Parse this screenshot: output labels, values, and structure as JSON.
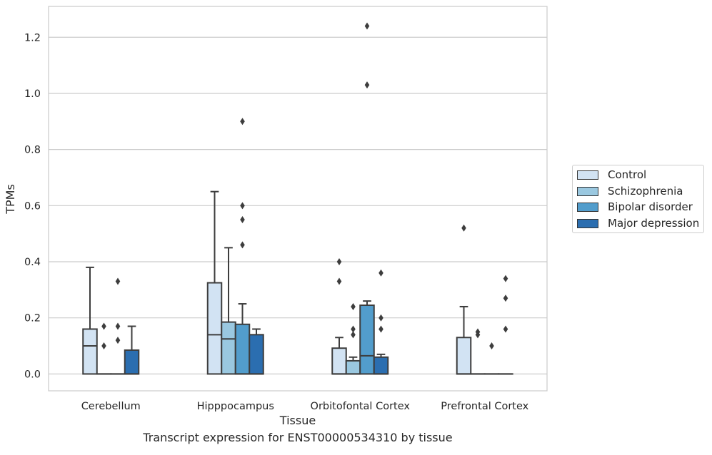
{
  "chart_data": {
    "type": "box",
    "xlabel": "Tissue",
    "ylabel": "TPMs",
    "caption": "Transcript expression for ENST00000534310 by tissue",
    "ylim": [
      -0.06,
      1.31
    ],
    "yticks": [
      "0.0",
      "0.2",
      "0.4",
      "0.6",
      "0.8",
      "1.0",
      "1.2"
    ],
    "grid": true,
    "legend_position": "right",
    "categories": [
      "Cerebellum",
      "Hipppocampus",
      "Orbitofontal Cortex",
      "Prefrontal Cortex"
    ],
    "series": [
      {
        "name": "Control",
        "color": "#d2e3f3"
      },
      {
        "name": "Schizophrenia",
        "color": "#9ac8e0"
      },
      {
        "name": "Bipolar disorder",
        "color": "#529dcc"
      },
      {
        "name": "Major depression",
        "color": "#2b6eb0"
      }
    ],
    "boxes": [
      [
        {
          "q1": 0.0,
          "median": 0.1,
          "q3": 0.16,
          "whislo": 0.0,
          "whishi": 0.38,
          "fliers": []
        },
        {
          "q1": 0.0,
          "median": 0.0,
          "q3": 0.0,
          "whislo": 0.0,
          "whishi": 0.0,
          "fliers": [
            0.1,
            0.17
          ]
        },
        {
          "q1": 0.0,
          "median": 0.0,
          "q3": 0.0,
          "whislo": 0.0,
          "whishi": 0.0,
          "fliers": [
            0.12,
            0.17,
            0.33
          ]
        },
        {
          "q1": 0.0,
          "median": 0.0,
          "q3": 0.085,
          "whislo": 0.0,
          "whishi": 0.17,
          "fliers": []
        }
      ],
      [
        {
          "q1": 0.0,
          "median": 0.14,
          "q3": 0.325,
          "whislo": 0.0,
          "whishi": 0.65,
          "fliers": []
        },
        {
          "q1": 0.0,
          "median": 0.125,
          "q3": 0.185,
          "whislo": 0.0,
          "whishi": 0.45,
          "fliers": []
        },
        {
          "q1": 0.0,
          "median": 0.0,
          "q3": 0.177,
          "whislo": 0.0,
          "whishi": 0.25,
          "fliers": [
            0.46,
            0.55,
            0.6,
            0.9
          ]
        },
        {
          "q1": 0.0,
          "median": 0.0,
          "q3": 0.14,
          "whislo": 0.0,
          "whishi": 0.16,
          "fliers": []
        }
      ],
      [
        {
          "q1": 0.0,
          "median": 0.0,
          "q3": 0.092,
          "whislo": 0.0,
          "whishi": 0.13,
          "fliers": [
            0.33,
            0.4
          ]
        },
        {
          "q1": 0.0,
          "median": 0.0,
          "q3": 0.047,
          "whislo": 0.0,
          "whishi": 0.06,
          "fliers": [
            0.14,
            0.16,
            0.24
          ]
        },
        {
          "q1": 0.0,
          "median": 0.065,
          "q3": 0.245,
          "whislo": 0.0,
          "whishi": 0.26,
          "fliers": [
            1.03,
            1.24
          ]
        },
        {
          "q1": 0.0,
          "median": 0.0,
          "q3": 0.06,
          "whislo": 0.0,
          "whishi": 0.07,
          "fliers": [
            0.16,
            0.2,
            0.36
          ]
        }
      ],
      [
        {
          "q1": 0.0,
          "median": 0.0,
          "q3": 0.13,
          "whislo": 0.0,
          "whishi": 0.24,
          "fliers": [
            0.52
          ]
        },
        {
          "q1": 0.0,
          "median": 0.0,
          "q3": 0.0,
          "whislo": 0.0,
          "whishi": 0.0,
          "fliers": [
            0.14,
            0.15
          ]
        },
        {
          "q1": 0.0,
          "median": 0.0,
          "q3": 0.0,
          "whislo": 0.0,
          "whishi": 0.0,
          "fliers": [
            0.1
          ]
        },
        {
          "q1": 0.0,
          "median": 0.0,
          "q3": 0.0,
          "whislo": 0.0,
          "whishi": 0.0,
          "fliers": [
            0.16,
            0.27,
            0.34
          ]
        }
      ]
    ]
  }
}
